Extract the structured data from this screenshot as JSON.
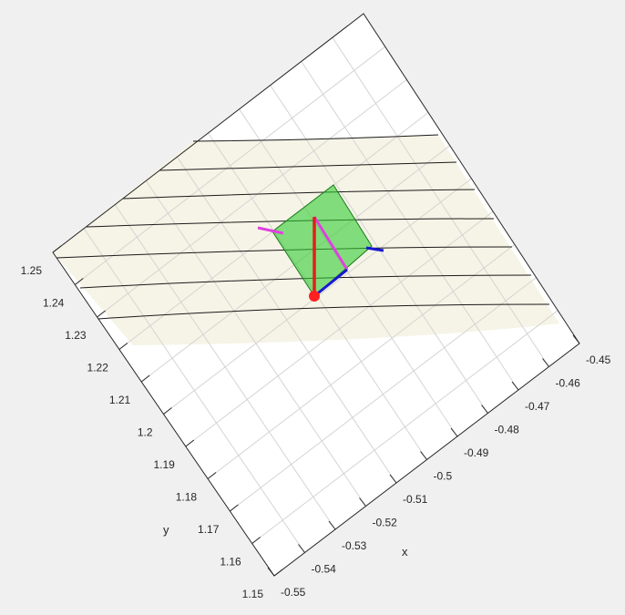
{
  "chart_data": {
    "type": "surface",
    "view": "3-D rotated surface plot with contour lines",
    "xlabel": "x",
    "ylabel": "y",
    "x_ticks": [
      "-0.55",
      "-0.54",
      "-0.53",
      "-0.52",
      "-0.51",
      "-0.5",
      "-0.49",
      "-0.48",
      "-0.47",
      "-0.46",
      "-0.45"
    ],
    "y_ticks": [
      "1.15",
      "1.16",
      "1.17",
      "1.18",
      "1.19",
      "1.2",
      "1.21",
      "1.22",
      "1.23",
      "1.24",
      "1.25"
    ],
    "xlim": [
      -0.55,
      -0.45
    ],
    "ylim": [
      1.15,
      1.25
    ],
    "grid": true,
    "colors": {
      "figure_background": "#f0f0f0",
      "surface": "#ffffff",
      "band": "#f6f4e6",
      "grid": "#d4d4d4",
      "contour": "#1a1a1a",
      "tangent_plane": "#33cc33",
      "vector_red": "#e0201a",
      "vector_magenta": "#e040e0",
      "vector_blue": "#1818d0",
      "point": "#ff2020"
    }
  }
}
